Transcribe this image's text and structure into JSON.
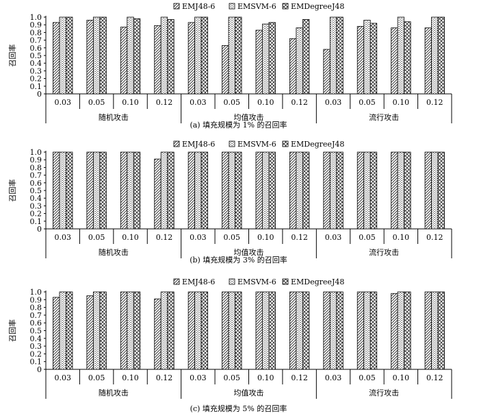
{
  "chart_data": [
    {
      "type": "bar",
      "title": "(a) 填充规模为 1% 的召回率",
      "ylabel": "召回率",
      "ylim": [
        0,
        1.0
      ],
      "yticks": [
        "0",
        "0.1",
        "0.2",
        "0.3",
        "0.4",
        "0.5",
        "0.6",
        "0.7",
        "0.8",
        "0.9",
        "1.0"
      ],
      "groups": [
        "随机攻击",
        "均值攻击",
        "流行攻击"
      ],
      "categories": [
        "0.03",
        "0.05",
        "0.10",
        "0.12",
        "0.03",
        "0.05",
        "0.10",
        "0.12",
        "0.03",
        "0.05",
        "0.10",
        "0.12"
      ],
      "series": [
        {
          "name": "EMJ48-6",
          "values": [
            0.93,
            0.96,
            0.87,
            0.89,
            0.93,
            0.63,
            0.83,
            0.72,
            0.58,
            0.88,
            0.86,
            0.86
          ]
        },
        {
          "name": "EMSVM-6",
          "values": [
            1.0,
            1.0,
            1.0,
            1.0,
            1.0,
            1.0,
            0.91,
            0.86,
            1.0,
            0.96,
            1.0,
            1.0
          ]
        },
        {
          "name": "EMDegreeJ48",
          "values": [
            1.0,
            1.0,
            0.98,
            0.97,
            1.0,
            1.0,
            0.93,
            0.97,
            1.0,
            0.92,
            0.94,
            1.0
          ]
        }
      ],
      "grid": false,
      "legend": "top"
    },
    {
      "type": "bar",
      "title": "(b) 填充规模为 3% 的召回率",
      "ylabel": "召回率",
      "ylim": [
        0,
        1.0
      ],
      "yticks": [
        "0",
        "0.1",
        "0.2",
        "0.3",
        "0.4",
        "0.5",
        "0.6",
        "0.7",
        "0.8",
        "0.9",
        "1.0"
      ],
      "groups": [
        "随机攻击",
        "均值攻击",
        "流行攻击"
      ],
      "categories": [
        "0.03",
        "0.05",
        "0.10",
        "0.12",
        "0.03",
        "0.05",
        "0.10",
        "0.12",
        "0.03",
        "0.05",
        "0.10",
        "0.12"
      ],
      "series": [
        {
          "name": "EMJ48-6",
          "values": [
            1.0,
            1.0,
            1.0,
            0.91,
            1.0,
            1.0,
            1.0,
            1.0,
            1.0,
            1.0,
            1.0,
            1.0
          ]
        },
        {
          "name": "EMSVM-6",
          "values": [
            1.0,
            1.0,
            1.0,
            1.0,
            1.0,
            1.0,
            1.0,
            1.0,
            1.0,
            1.0,
            1.0,
            1.0
          ]
        },
        {
          "name": "EMDegreeJ48",
          "values": [
            1.0,
            1.0,
            1.0,
            1.0,
            1.0,
            1.0,
            1.0,
            1.0,
            1.0,
            1.0,
            1.0,
            1.0
          ]
        }
      ],
      "grid": false,
      "legend": "top"
    },
    {
      "type": "bar",
      "title": "(c) 填充规模为 5% 的召回率",
      "ylabel": "召回率",
      "ylim": [
        0,
        1.0
      ],
      "yticks": [
        "0",
        "0.1",
        "0.2",
        "0.3",
        "0.4",
        "0.5",
        "0.6",
        "0.7",
        "0.8",
        "0.9",
        "1.0"
      ],
      "groups": [
        "随机攻击",
        "均值攻击",
        "流行攻击"
      ],
      "categories": [
        "0.03",
        "0.05",
        "0.10",
        "0.12",
        "0.03",
        "0.05",
        "0.10",
        "0.12",
        "0.03",
        "0.05",
        "0.10",
        "0.12"
      ],
      "series": [
        {
          "name": "EMJ48-6",
          "values": [
            0.93,
            0.95,
            1.0,
            0.91,
            1.0,
            1.0,
            1.0,
            1.0,
            1.0,
            1.0,
            0.98,
            1.0
          ]
        },
        {
          "name": "EMSVM-6",
          "values": [
            1.0,
            1.0,
            1.0,
            1.0,
            1.0,
            1.0,
            1.0,
            1.0,
            1.0,
            1.0,
            1.0,
            1.0
          ]
        },
        {
          "name": "EMDegreeJ48",
          "values": [
            1.0,
            1.0,
            1.0,
            1.0,
            1.0,
            1.0,
            1.0,
            1.0,
            1.0,
            1.0,
            1.0,
            1.0
          ]
        }
      ],
      "grid": false,
      "legend": "top"
    }
  ]
}
